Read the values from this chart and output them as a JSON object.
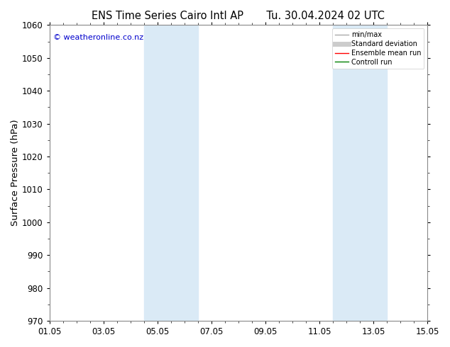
{
  "title_left": "ENS Time Series Cairo Intl AP",
  "title_right": "Tu. 30.04.2024 02 UTC",
  "ylabel": "Surface Pressure (hPa)",
  "ylim": [
    970,
    1060
  ],
  "yticks": [
    970,
    980,
    990,
    1000,
    1010,
    1020,
    1030,
    1040,
    1050,
    1060
  ],
  "xlim": [
    0,
    14
  ],
  "xtick_positions": [
    0,
    2,
    4,
    6,
    8,
    10,
    12,
    14
  ],
  "xtick_labels": [
    "01.05",
    "03.05",
    "05.05",
    "07.05",
    "09.05",
    "11.05",
    "13.05",
    "15.05"
  ],
  "shade_bands": [
    {
      "x_start": 3.5,
      "x_end": 5.5
    },
    {
      "x_start": 10.5,
      "x_end": 12.5
    }
  ],
  "shade_color": "#daeaf6",
  "watermark": "© weatheronline.co.nz",
  "watermark_color": "#0000cc",
  "legend_entries": [
    {
      "label": "min/max",
      "color": "#aaaaaa",
      "linewidth": 1.0
    },
    {
      "label": "Standard deviation",
      "color": "#cccccc",
      "linewidth": 5
    },
    {
      "label": "Ensemble mean run",
      "color": "#ff0000",
      "linewidth": 1.0
    },
    {
      "label": "Controll run",
      "color": "#008000",
      "linewidth": 1.0
    }
  ],
  "bg_color": "#ffffff",
  "spine_color": "#888888",
  "tick_fontsize": 8.5,
  "label_fontsize": 9.5,
  "title_fontsize": 10.5,
  "watermark_fontsize": 8
}
